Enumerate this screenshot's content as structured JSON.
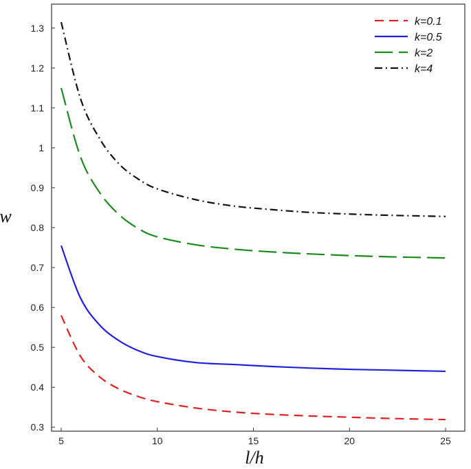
{
  "chart_data": {
    "type": "line",
    "title": "",
    "xlabel": "l/h",
    "ylabel": "w",
    "xlim": [
      4.5,
      26.0
    ],
    "ylim": [
      0.29,
      1.36
    ],
    "xticks": [
      5,
      10,
      15,
      20,
      25
    ],
    "xtick_labels": [
      "5",
      "10",
      "15",
      "20",
      "25"
    ],
    "yticks": [
      0.3,
      0.4,
      0.5,
      0.6,
      0.7,
      0.8,
      0.9,
      1.0,
      1.1,
      1.2,
      1.3
    ],
    "ytick_labels": [
      "0.3",
      "0.4",
      "0.5",
      "0.6",
      "0.7",
      "0.8",
      "0.9",
      "1",
      "1.1",
      "1.2",
      "1.3"
    ],
    "grid": false,
    "legend_position": "top-right",
    "x": [
      5,
      6,
      7,
      8,
      9,
      10,
      12,
      14,
      16,
      18,
      20,
      22,
      25
    ],
    "series": [
      {
        "name": "k=0.1",
        "color": "#e02020",
        "dash": "dashed",
        "values": [
          0.58,
          0.478,
          0.426,
          0.396,
          0.377,
          0.364,
          0.348,
          0.338,
          0.332,
          0.328,
          0.325,
          0.322,
          0.319
        ]
      },
      {
        "name": "k=0.5",
        "color": "#1f1fe0",
        "dash": "solid",
        "values": [
          0.755,
          0.624,
          0.556,
          0.517,
          0.492,
          0.477,
          0.462,
          0.457,
          0.452,
          0.448,
          0.445,
          0.443,
          0.44
        ]
      },
      {
        "name": "k=2",
        "color": "#1a8a1a",
        "dash": "long-dash",
        "values": [
          1.15,
          0.978,
          0.888,
          0.833,
          0.798,
          0.777,
          0.757,
          0.746,
          0.739,
          0.734,
          0.73,
          0.727,
          0.724
        ]
      },
      {
        "name": "k=4",
        "color": "#111111",
        "dash": "dash-dot",
        "values": [
          1.315,
          1.124,
          1.023,
          0.96,
          0.922,
          0.897,
          0.87,
          0.854,
          0.845,
          0.838,
          0.834,
          0.831,
          0.828
        ]
      }
    ]
  }
}
